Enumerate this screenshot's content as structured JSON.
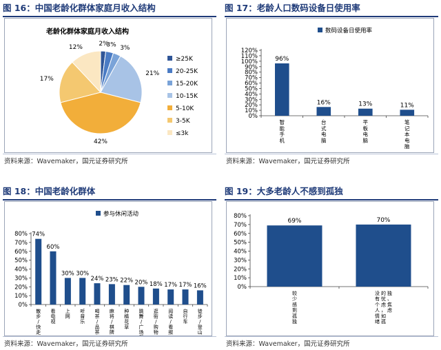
{
  "colors": {
    "header": "#1e3a78",
    "bar": "#1f4e8c",
    "pie": [
      "#2f5597",
      "#4a7bc4",
      "#7aa3d8",
      "#a8c3e6",
      "#f2ae3a",
      "#f4c870",
      "#fbe7c2"
    ]
  },
  "panels": {
    "p16": {
      "fig_title": "图 16：中国老龄化群体家庭月收入结构",
      "source": "资料来源：Wavemaker，国元证券研究所",
      "chart_data": {
        "type": "pie",
        "title": "老龄化群体家庭月收入结构",
        "labels": [
          "≥25K",
          "20-25K",
          "15-20K",
          "10-15K",
          "5-10K",
          "3-5K",
          "≤3k"
        ],
        "values": [
          2,
          3,
          3,
          21,
          42,
          17,
          12
        ],
        "value_labels": [
          "2%",
          "3%",
          "3%",
          "21%",
          "42%",
          "17%",
          "12%"
        ],
        "legend": "right"
      }
    },
    "p17": {
      "fig_title": "图 17：老龄人口数码设备日使用率",
      "source": "资料来源：Wavemaker，国元证券研究所",
      "chart_data": {
        "type": "bar",
        "categories": [
          "智能手机",
          "台式电脑",
          "平板电脑",
          "笔记本电脑"
        ],
        "series": [
          {
            "name": "数码设备日使用率",
            "values": [
              96,
              16,
              13,
              11
            ]
          }
        ],
        "value_labels": [
          "96%",
          "16%",
          "13%",
          "11%"
        ],
        "yticks": [
          "0%",
          "10%",
          "20%",
          "30%",
          "40%",
          "50%",
          "60%",
          "70%",
          "80%",
          "90%",
          "100%",
          "110%",
          "120%"
        ],
        "ylim": [
          0,
          120
        ],
        "legend": "top-left"
      }
    },
    "p18": {
      "fig_title": "图 18：中国老龄化群体",
      "source": "资料来源：Wavemaker，国元证券研究所",
      "chart_data": {
        "type": "bar",
        "categories": [
          "散步/快走",
          "看电视",
          "上网",
          "听音乐",
          "喝茶/品茶",
          "麻将/棋牌",
          "种植花草",
          "跳舞/广场舞",
          "逛街/购物",
          "阅读/看报",
          "自行车",
          "徒步/登山"
        ],
        "series": [
          {
            "name": "参与休闲活动",
            "values": [
              74,
              60,
              30,
              30,
              24,
              23,
              22,
              20,
              18,
              17,
              17,
              16
            ]
          }
        ],
        "value_labels": [
          "74%",
          "60%",
          "30%",
          "30%",
          "24%",
          "23%",
          "22%",
          "20%",
          "18%",
          "17%",
          "17%",
          "16%"
        ],
        "yticks": [
          "0%",
          "10%",
          "20%",
          "30%",
          "40%",
          "50%",
          "60%",
          "70%",
          "80%"
        ],
        "ylim": [
          0,
          80
        ],
        "legend": "top-center"
      }
    },
    "p19": {
      "fig_title": "图 19：大多老龄人不感到孤独",
      "source": "资料来源：Wavemaker，国元证券研究所",
      "chart_data": {
        "type": "bar",
        "categories": [
          "较少感到孤独",
          "没有个人情绪的忧虑，如孤独、焦虑"
        ],
        "series": [
          {
            "values": [
              69,
              70
            ]
          }
        ],
        "value_labels": [
          "69%",
          "70%"
        ],
        "yticks": [
          "0%",
          "10%",
          "20%",
          "30%",
          "40%",
          "50%",
          "60%",
          "70%",
          "80%"
        ],
        "ylim": [
          0,
          80
        ]
      }
    }
  }
}
